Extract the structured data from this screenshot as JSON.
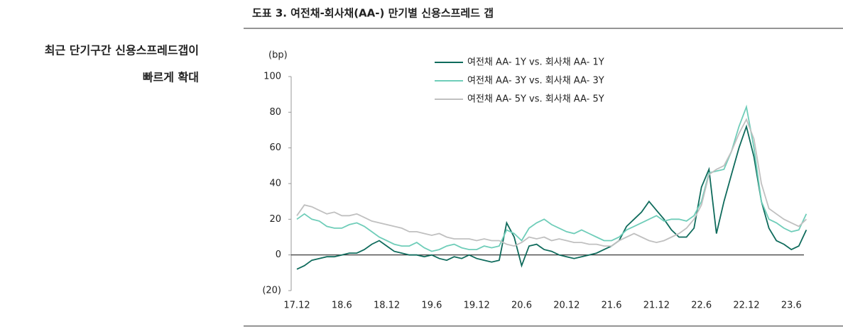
{
  "sidebar": {
    "lines": [
      "최근 단기구간 신용스프레드갭이",
      "빠르게 확대"
    ]
  },
  "chart_data": {
    "type": "line",
    "title": "도표 3. 여전채-회사채(AA-) 만기별 신용스프레드 갭",
    "y_label": "(bp)",
    "categories": [
      "17.12",
      null,
      null,
      null,
      null,
      null,
      "18.6",
      null,
      null,
      null,
      null,
      null,
      "18.12",
      null,
      null,
      null,
      null,
      null,
      "19.6",
      null,
      null,
      null,
      null,
      null,
      "19.12",
      null,
      null,
      null,
      null,
      null,
      "20.6",
      null,
      null,
      null,
      null,
      null,
      "20.12",
      null,
      null,
      null,
      null,
      null,
      "21.6",
      null,
      null,
      null,
      null,
      null,
      "21.12",
      null,
      null,
      null,
      null,
      null,
      "22.6",
      null,
      null,
      null,
      null,
      null,
      "22.12",
      null,
      null,
      null,
      null,
      null,
      "23.6",
      null,
      null
    ],
    "series": [
      {
        "name": "여전채 AA- 1Y vs. 회사채 AA- 1Y",
        "color": "#0f6b5c",
        "values": [
          -8,
          -6,
          -3,
          -2,
          -1,
          -1,
          0,
          1,
          1,
          3,
          6,
          8,
          5,
          2,
          1,
          0,
          0,
          -1,
          0,
          -2,
          -3,
          -1,
          -2,
          0,
          -2,
          -3,
          -4,
          -3,
          18,
          10,
          -6,
          5,
          6,
          3,
          2,
          0,
          -1,
          -2,
          -1,
          0,
          1,
          3,
          5,
          8,
          16,
          20,
          24,
          30,
          25,
          20,
          14,
          10,
          10,
          15,
          38,
          48,
          12,
          30,
          45,
          60,
          72,
          55,
          30,
          15,
          8,
          6,
          3,
          5,
          14
        ]
      },
      {
        "name": "여전채 AA- 3Y vs. 회사채 AA- 3Y",
        "color": "#6fcdb9",
        "values": [
          20,
          23,
          20,
          19,
          16,
          15,
          15,
          17,
          18,
          16,
          13,
          10,
          8,
          6,
          5,
          5,
          7,
          4,
          2,
          3,
          5,
          6,
          4,
          3,
          3,
          5,
          4,
          5,
          14,
          12,
          8,
          15,
          18,
          20,
          17,
          15,
          13,
          12,
          14,
          12,
          10,
          8,
          8,
          10,
          14,
          16,
          18,
          20,
          22,
          19,
          20,
          20,
          19,
          22,
          30,
          46,
          47,
          48,
          58,
          72,
          83,
          60,
          30,
          20,
          18,
          15,
          13,
          14,
          23
        ]
      },
      {
        "name": "여전채 AA- 5Y vs. 회사채 AA- 5Y",
        "color": "#c0c0c0",
        "values": [
          22,
          28,
          27,
          25,
          23,
          24,
          22,
          22,
          23,
          21,
          19,
          18,
          17,
          16,
          15,
          13,
          13,
          12,
          11,
          12,
          10,
          9,
          9,
          9,
          8,
          9,
          8,
          8,
          6,
          5,
          7,
          10,
          9,
          10,
          8,
          9,
          8,
          7,
          7,
          6,
          6,
          5,
          5,
          8,
          10,
          12,
          10,
          8,
          7,
          8,
          10,
          12,
          15,
          20,
          28,
          45,
          48,
          50,
          58,
          68,
          76,
          65,
          40,
          26,
          23,
          20,
          18,
          16,
          20
        ]
      }
    ],
    "ylim": [
      -20,
      100
    ],
    "yticks": [
      100,
      80,
      60,
      40,
      20,
      0,
      {
        "value": -20,
        "label": "(20)"
      }
    ],
    "zero_line": true,
    "grid": false,
    "legend": "top"
  }
}
